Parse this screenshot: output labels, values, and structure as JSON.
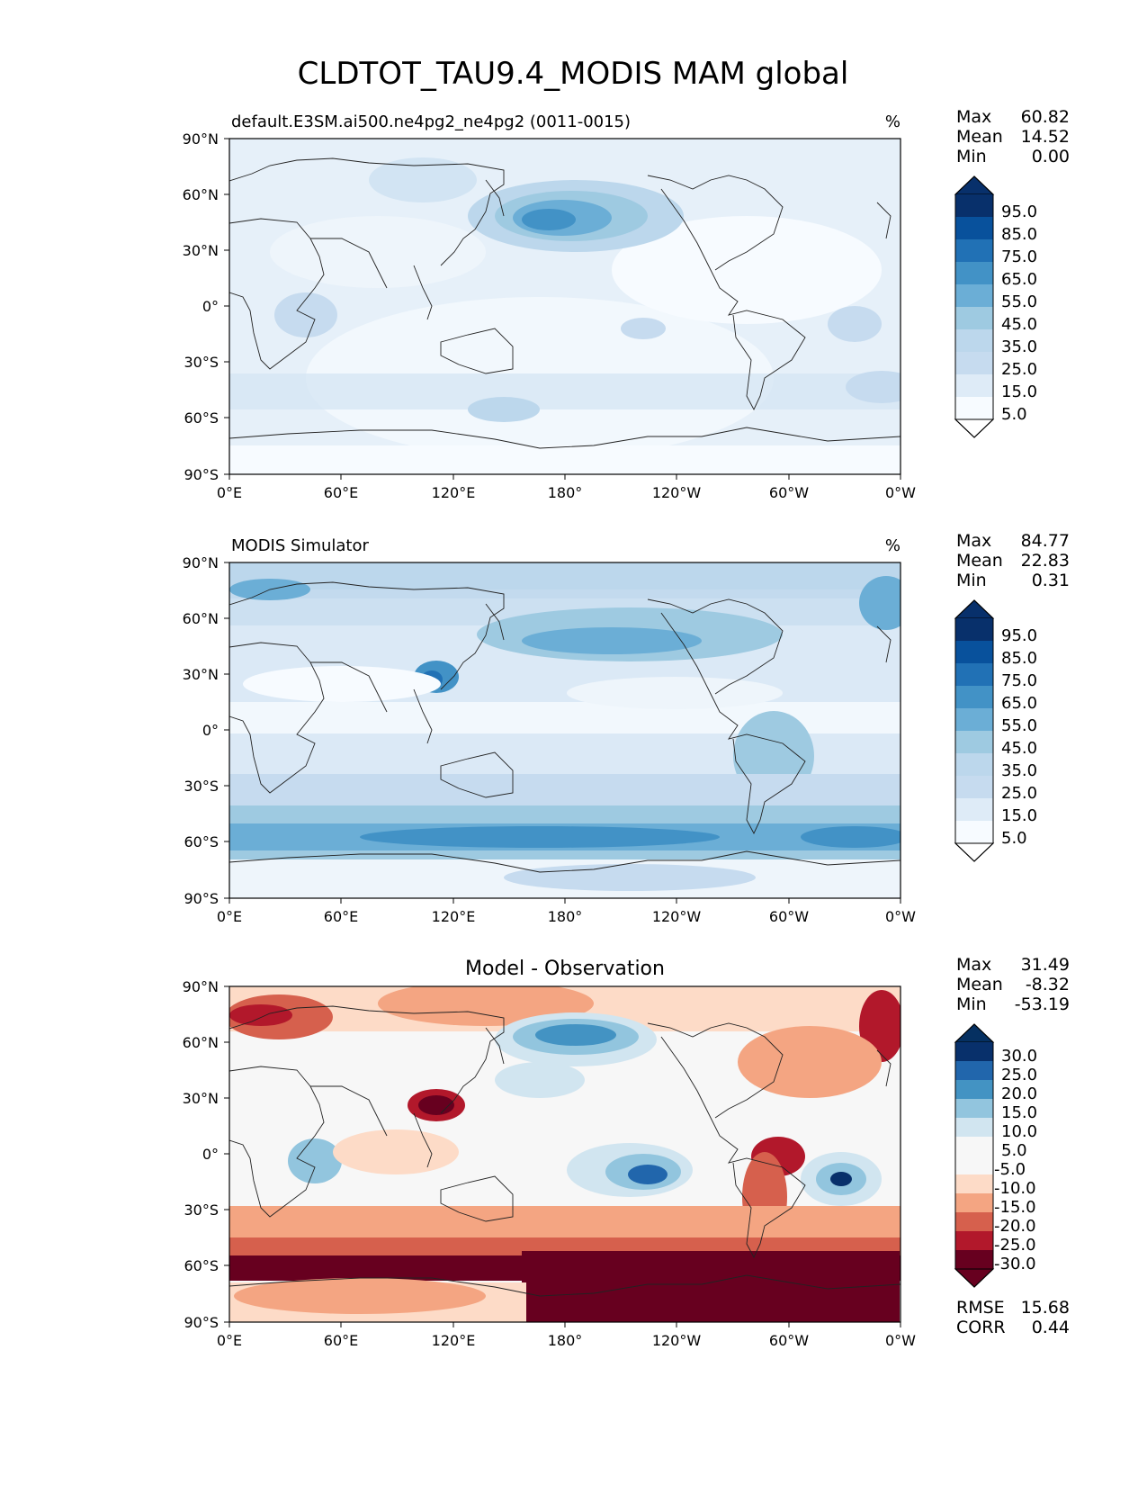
{
  "figure": {
    "title": "CLDTOT_TAU9.4_MODIS MAM global"
  },
  "axes": {
    "x_ticks": [
      "0°E",
      "60°E",
      "120°E",
      "180°",
      "120°W",
      "60°W",
      "0°W"
    ],
    "y_ticks": [
      "90°N",
      "60°N",
      "30°N",
      "0°",
      "30°S",
      "60°S",
      "90°S"
    ]
  },
  "panels": [
    {
      "id": "test",
      "left_title": "default.E3SM.ai500.ne4pg2_ne4pg2 (0011-0015)",
      "center_title": "",
      "right_title": "%",
      "stats": [
        {
          "label": "Max",
          "value": "60.82"
        },
        {
          "label": "Mean",
          "value": "14.52"
        },
        {
          "label": "Min",
          "value": "0.00"
        }
      ],
      "colorbar": {
        "labels": [
          "95.0",
          "85.0",
          "75.0",
          "65.0",
          "55.0",
          "45.0",
          "35.0",
          "25.0",
          "15.0",
          "5.0"
        ],
        "colors": [
          "#08306b",
          "#08519c",
          "#2171b5",
          "#4292c6",
          "#6baed6",
          "#9ecae1",
          "#bcd7ec",
          "#c6dbef",
          "#deebf7",
          "#f7fbff"
        ],
        "extend_top": "#08306b",
        "extend_bottom": "#ffffff"
      },
      "map_palette": {
        "base": "#deebf7",
        "light": "#eef5fb",
        "mid": "#c6dbef",
        "strong": "#9ecae1",
        "deep": "#6baed6",
        "deeper": "#4292c6"
      }
    },
    {
      "id": "reference",
      "left_title": "MODIS Simulator",
      "center_title": "",
      "right_title": "%",
      "stats": [
        {
          "label": "Max",
          "value": "84.77"
        },
        {
          "label": "Mean",
          "value": "22.83"
        },
        {
          "label": "Min",
          "value": "0.31"
        }
      ],
      "colorbar": {
        "labels": [
          "95.0",
          "85.0",
          "75.0",
          "65.0",
          "55.0",
          "45.0",
          "35.0",
          "25.0",
          "15.0",
          "5.0"
        ],
        "colors": [
          "#08306b",
          "#08519c",
          "#2171b5",
          "#4292c6",
          "#6baed6",
          "#9ecae1",
          "#bcd7ec",
          "#c6dbef",
          "#deebf7",
          "#f7fbff"
        ],
        "extend_top": "#08306b",
        "extend_bottom": "#ffffff"
      },
      "map_palette": {
        "base": "#c6dbef",
        "light": "#eef5fb",
        "mid": "#9ecae1",
        "strong": "#6baed6",
        "deep": "#4292c6",
        "deeper": "#2171b5"
      }
    },
    {
      "id": "diff",
      "left_title": "",
      "center_title": "Model - Observation",
      "right_title": "",
      "stats": [
        {
          "label": "Max",
          "value": "31.49"
        },
        {
          "label": "Mean",
          "value": "-8.32"
        },
        {
          "label": "Min",
          "value": "-53.19"
        }
      ],
      "colorbar": {
        "labels": [
          "30.0",
          "25.0",
          "20.0",
          "15.0",
          "10.0",
          "5.0",
          "-5.0",
          "-10.0",
          "-15.0",
          "-20.0",
          "-25.0",
          "-30.0"
        ],
        "colors": [
          "#08306b",
          "#2166ac",
          "#4393c3",
          "#92c5de",
          "#d1e5f0",
          "#f7f7f7",
          "#f7f7f7",
          "#fddbc7",
          "#f4a582",
          "#d6604d",
          "#b2182b",
          "#67001f"
        ],
        "extend_top": "#053061",
        "extend_bottom": "#67001f"
      },
      "bottom_stats": [
        {
          "label": "RMSE",
          "value": "15.68"
        },
        {
          "label": "CORR",
          "value": "0.44"
        }
      ]
    }
  ]
}
